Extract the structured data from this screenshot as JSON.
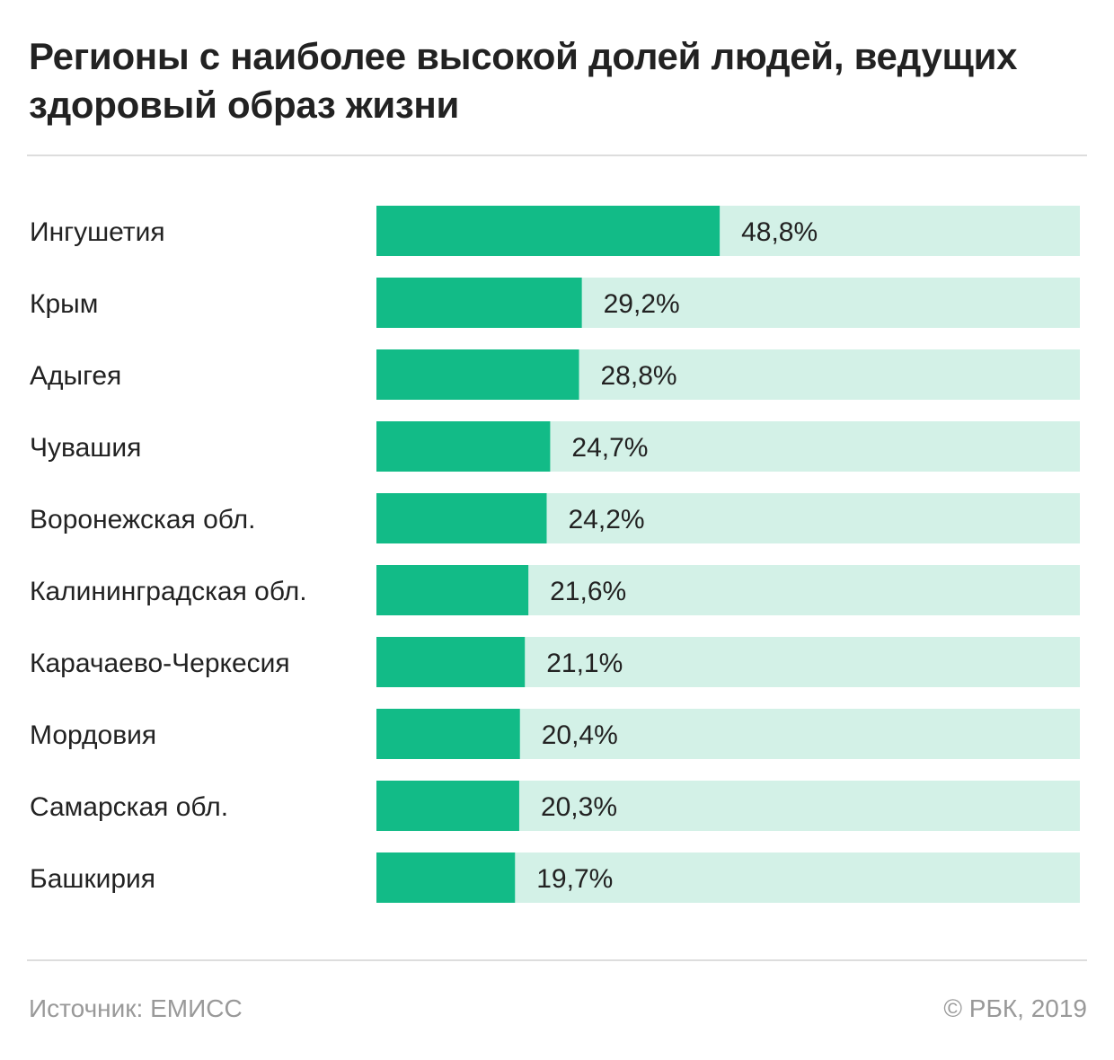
{
  "title": "Регионы с наиболее высокой долей людей, ведущих здоровый образ жизни",
  "source": "Источник: ЕМИСС",
  "copyright": "© РБК, 2019",
  "colors": {
    "bar": "#12bb87",
    "track": "#d3f1e7",
    "text": "#222222",
    "muted": "#999999",
    "rule": "#dddddd"
  },
  "chart_data": {
    "type": "bar",
    "orientation": "horizontal",
    "categories": [
      "Ингушетия",
      "Крым",
      "Адыгея",
      "Чувашия",
      "Воронежская обл.",
      "Калининградская обл.",
      "Карачаево-Черкесия",
      "Мордовия",
      "Самарская обл.",
      "Башкирия"
    ],
    "values": [
      48.8,
      29.2,
      28.8,
      24.7,
      24.2,
      21.6,
      21.1,
      20.4,
      20.3,
      19.7
    ],
    "value_labels": [
      "48,8%",
      "29,2%",
      "28,8%",
      "24,7%",
      "24,2%",
      "21,6%",
      "21,1%",
      "20,4%",
      "20,3%",
      "19,7%"
    ],
    "xlim": [
      0,
      100
    ],
    "unit": "%",
    "grid": false,
    "legend": "none"
  }
}
